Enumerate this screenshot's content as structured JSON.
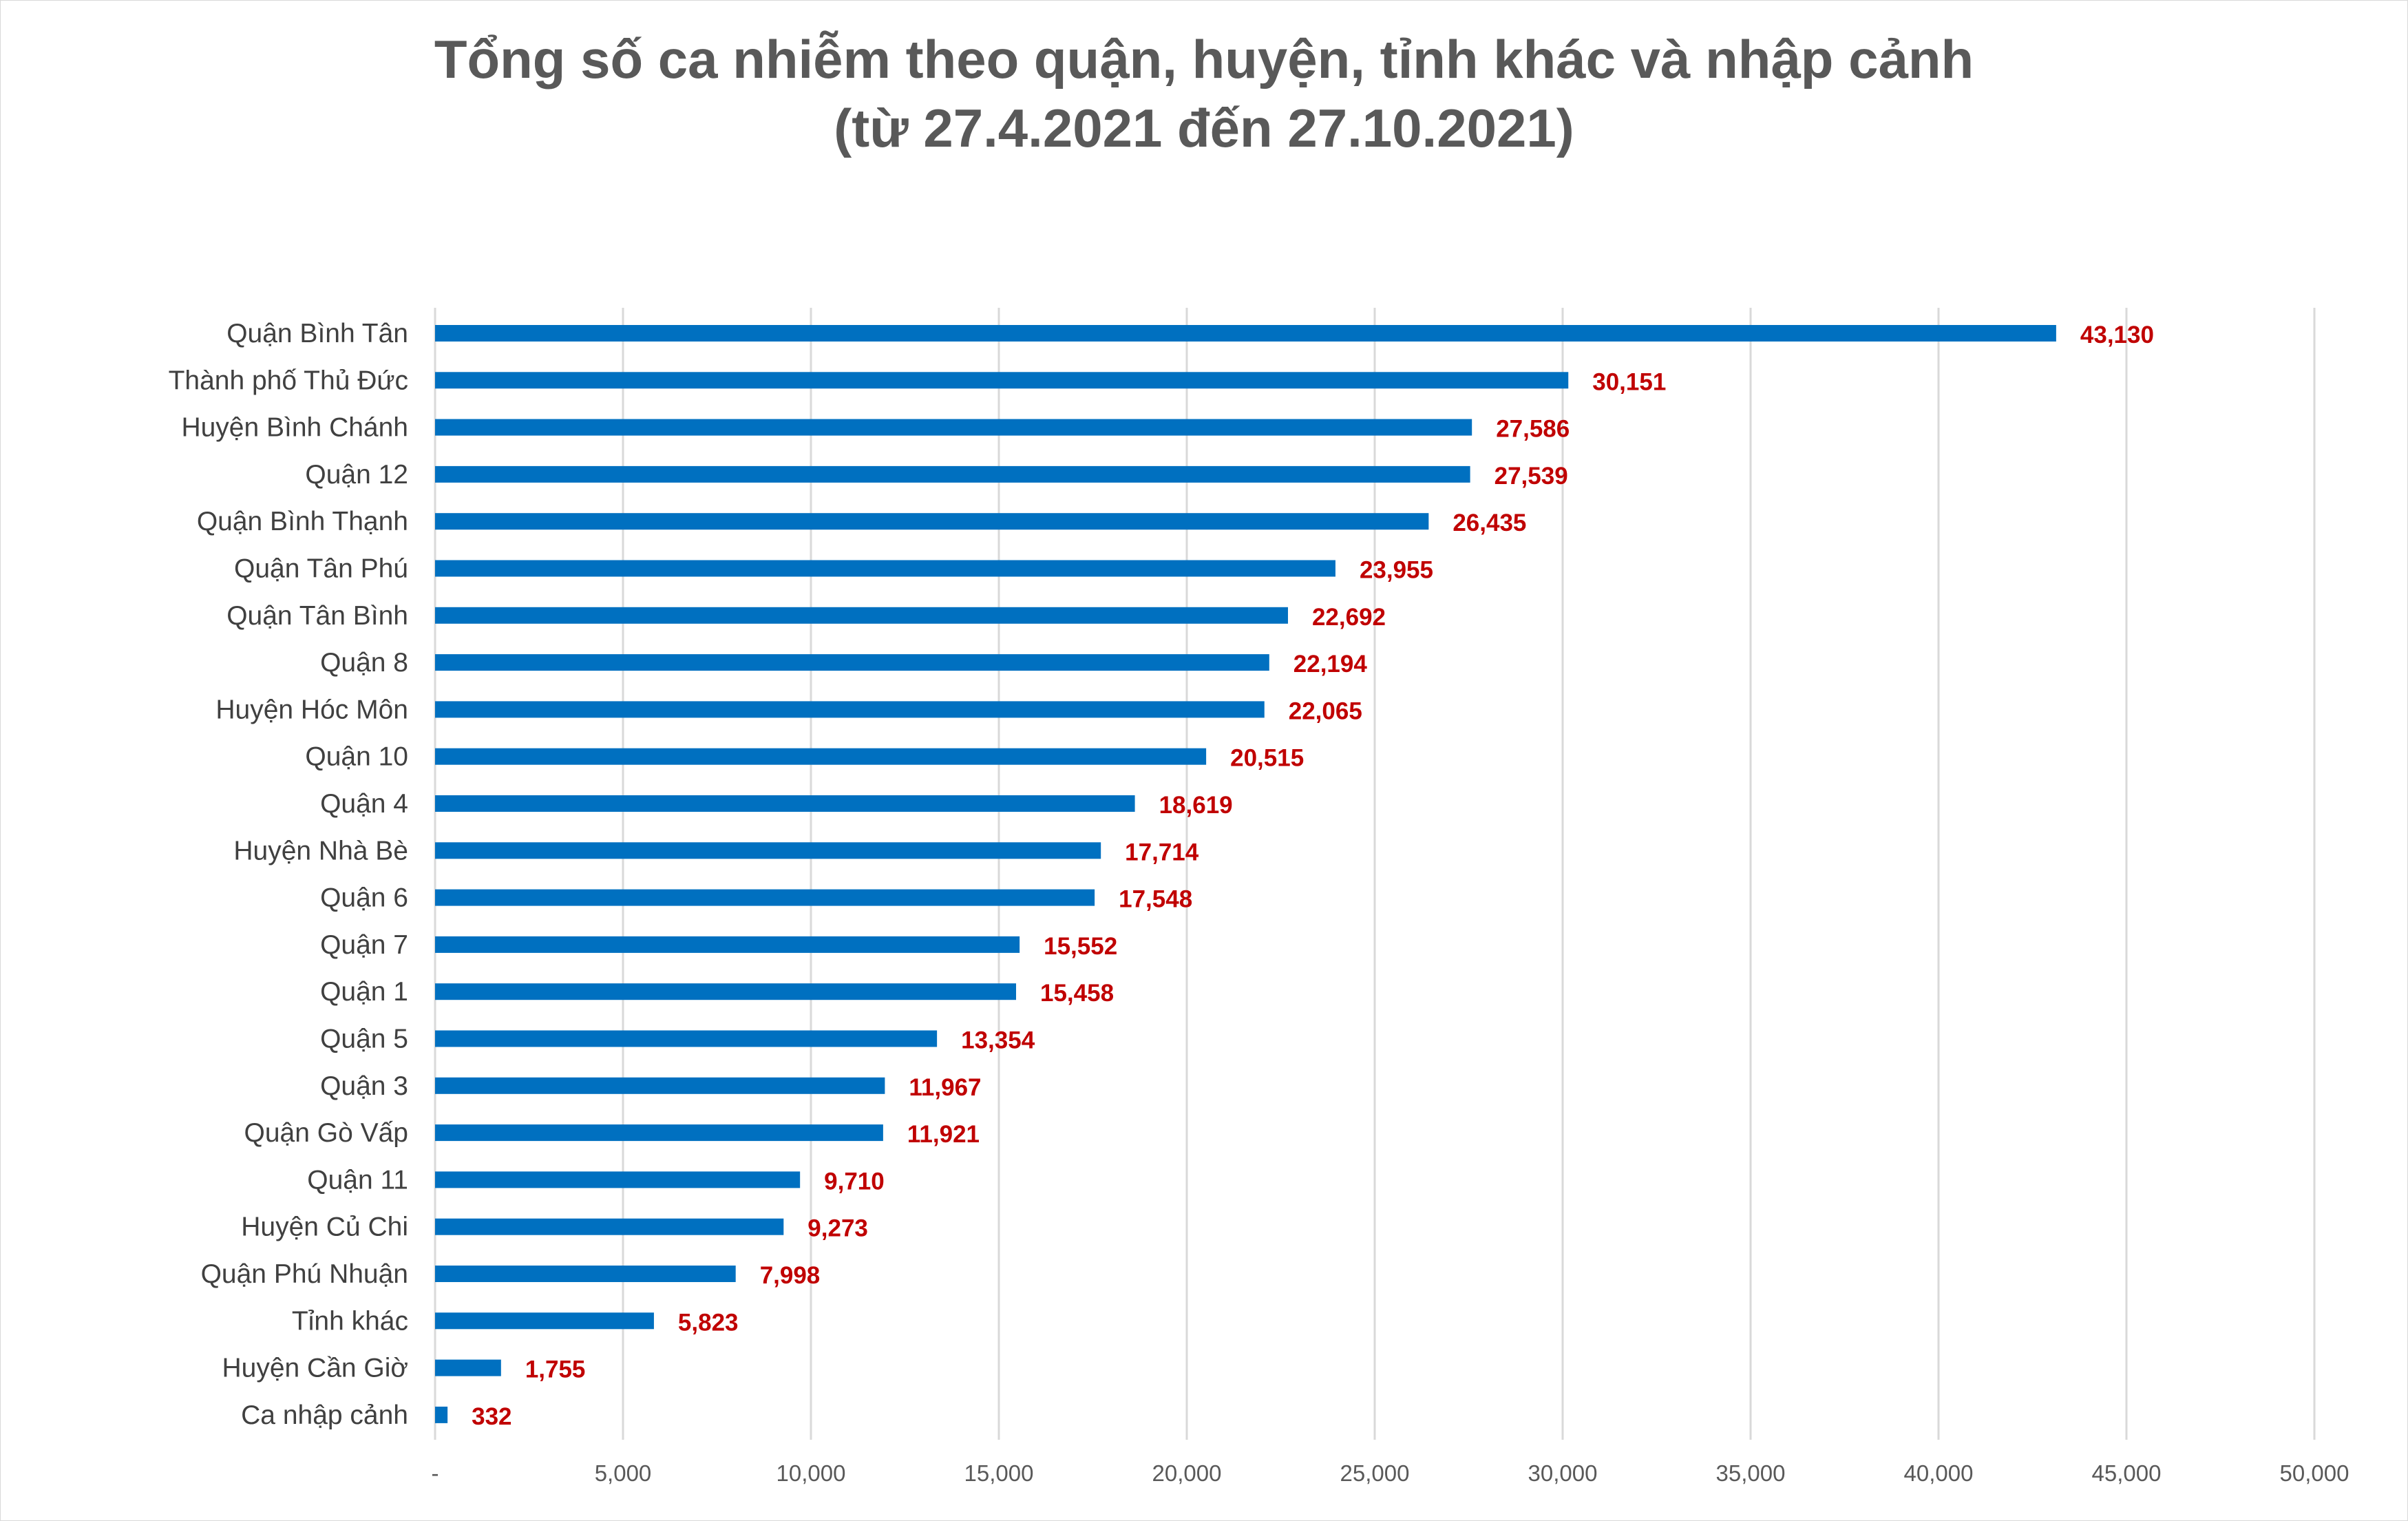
{
  "chart_data": {
    "type": "bar",
    "orientation": "horizontal",
    "title_line1": "Tổng số ca nhiễm theo quận, huyện, tỉnh khác và nhập cảnh",
    "title_line2": "(từ 27.4.2021 đến 27.10.2021)",
    "categories": [
      "Quận Bình Tân",
      "Thành phố Thủ Đức",
      "Huyện Bình Chánh",
      "Quận 12",
      "Quận Bình Thạnh",
      "Quận Tân Phú",
      "Quận Tân Bình",
      "Quận 8",
      "Huyện Hóc Môn",
      "Quận 10",
      "Quận 4",
      "Huyện Nhà Bè",
      "Quận 6",
      "Quận 7",
      "Quận 1",
      "Quận 5",
      "Quận 3",
      "Quận Gò Vấp",
      "Quận 11",
      "Huyện Củ Chi",
      "Quận Phú Nhuận",
      "Tỉnh khác",
      "Huyện Cần Giờ",
      "Ca nhập cảnh"
    ],
    "values": [
      43130,
      30151,
      27586,
      27539,
      26435,
      23955,
      22692,
      22194,
      22065,
      20515,
      18619,
      17714,
      17548,
      15552,
      15458,
      13354,
      11967,
      11921,
      9710,
      9273,
      7998,
      5823,
      1755,
      332
    ],
    "value_labels": [
      "43,130",
      "30,151",
      "27,586",
      "27,539",
      "26,435",
      "23,955",
      "22,692",
      "22,194",
      "22,065",
      "20,515",
      "18,619",
      "17,714",
      "17,548",
      "15,552",
      "15,458",
      "13,354",
      "11,967",
      "11,921",
      "9,710",
      "9,273",
      "7,998",
      "5,823",
      "1,755",
      "332"
    ],
    "xlim": [
      0,
      50000
    ],
    "x_ticks": [
      0,
      5000,
      10000,
      15000,
      20000,
      25000,
      30000,
      35000,
      40000,
      45000,
      50000
    ],
    "x_tick_labels": [
      "-",
      "5,000",
      "10,000",
      "15,000",
      "20,000",
      "25,000",
      "30,000",
      "35,000",
      "40,000",
      "45,000",
      "50,000"
    ],
    "grid": true,
    "legend": "none",
    "colors": {
      "bar": "#0070c0",
      "value_label": "#c00000",
      "title": "#595959",
      "category_label": "#404040",
      "tick_label": "#595959",
      "grid": "#d9d9d9"
    }
  }
}
